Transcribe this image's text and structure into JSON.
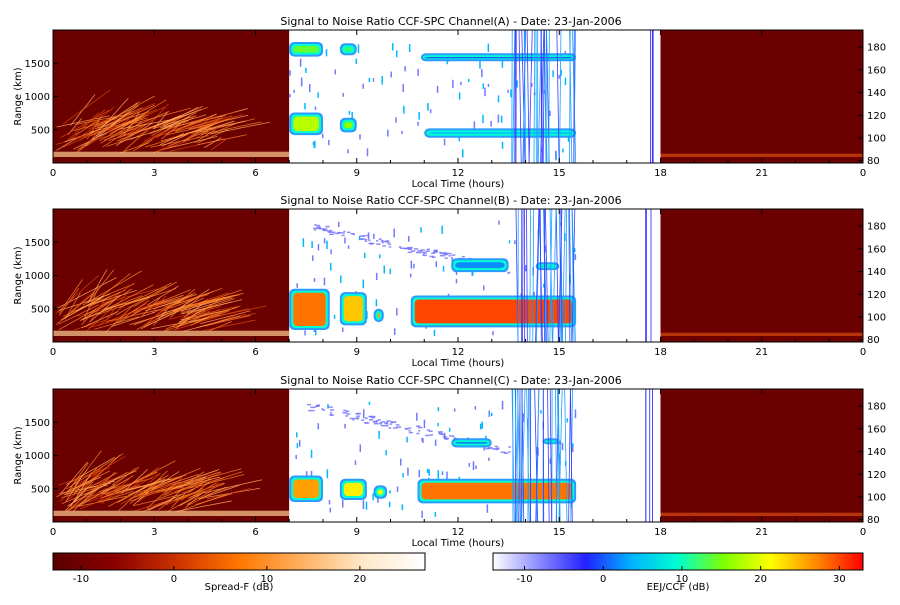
{
  "chart_data": {
    "type": "heatmap",
    "date": "23-Jan-2006",
    "xlabel": "Local Time (hours)",
    "xlim": [
      0,
      24
    ],
    "xticks": [
      "0",
      "3",
      "6",
      "9",
      "12",
      "15",
      "18",
      "21",
      "0"
    ],
    "ylabel_left": "Range (km)",
    "ylim_left": [
      0,
      2000
    ],
    "yticks_left": [
      "500",
      "1000",
      "1500"
    ],
    "ylim_right": [
      78,
      195
    ],
    "yticks_right": [
      "80",
      "100",
      "120",
      "140",
      "160",
      "180"
    ],
    "panels": [
      {
        "title": "Signal to Noise Ratio CCF-SPC Channel(A) - Date: 23-Jan-2006",
        "spreadF": {
          "start": 0,
          "end": 7,
          "bg": "#6b0000"
        },
        "ccf": {
          "start": 7,
          "end": 17.8
        },
        "spreadF2": {
          "start": 18,
          "end": 24,
          "bg": "#6b0000"
        },
        "features": [
          {
            "x0": 7.0,
            "x1": 8.0,
            "y0": 1600,
            "y1": 1820,
            "level": 14
          },
          {
            "x0": 8.5,
            "x1": 9.0,
            "y0": 1620,
            "y1": 1800,
            "level": 12
          },
          {
            "x0": 7.0,
            "x1": 8.0,
            "y0": 420,
            "y1": 760,
            "level": 18
          },
          {
            "x0": 8.5,
            "x1": 9.0,
            "y0": 460,
            "y1": 680,
            "level": 16
          },
          {
            "x0": 11.0,
            "x1": 15.5,
            "y0": 380,
            "y1": 520,
            "level": 4
          },
          {
            "x0": 10.9,
            "x1": 15.5,
            "y0": 1530,
            "y1": 1650,
            "level": -2
          }
        ]
      },
      {
        "title": "Signal to Noise Ratio CCF-SPC Channel(B) - Date: 23-Jan-2006",
        "spreadF": {
          "start": 0,
          "end": 7,
          "bg": "#6b0000"
        },
        "ccf": {
          "start": 7,
          "end": 17.8
        },
        "spreadF2": {
          "start": 18,
          "end": 24,
          "bg": "#6b0000"
        },
        "features": [
          {
            "x0": 7.0,
            "x1": 8.2,
            "y0": 180,
            "y1": 800,
            "level": 28
          },
          {
            "x0": 8.5,
            "x1": 9.3,
            "y0": 250,
            "y1": 750,
            "level": 24
          },
          {
            "x0": 9.5,
            "x1": 9.8,
            "y0": 300,
            "y1": 500,
            "level": 26
          },
          {
            "x0": 10.6,
            "x1": 15.5,
            "y0": 220,
            "y1": 700,
            "level": 30
          },
          {
            "x0": 11.8,
            "x1": 13.5,
            "y0": 1050,
            "y1": 1260,
            "level": 2
          },
          {
            "x0": 14.3,
            "x1": 15.0,
            "y0": 1080,
            "y1": 1200,
            "level": 6
          }
        ]
      },
      {
        "title": "Signal to Noise Ratio CCF-SPC Channel(C) - Date: 23-Jan-2006",
        "spreadF": {
          "start": 0,
          "end": 7,
          "bg": "#6b0000"
        },
        "ccf": {
          "start": 7,
          "end": 17.8
        },
        "spreadF2": {
          "start": 18,
          "end": 24,
          "bg": "#6b0000"
        },
        "features": [
          {
            "x0": 7.0,
            "x1": 8.0,
            "y0": 300,
            "y1": 700,
            "level": 26
          },
          {
            "x0": 8.5,
            "x1": 9.3,
            "y0": 330,
            "y1": 650,
            "level": 22
          },
          {
            "x0": 9.5,
            "x1": 9.9,
            "y0": 350,
            "y1": 550,
            "level": 20
          },
          {
            "x0": 10.8,
            "x1": 15.5,
            "y0": 280,
            "y1": 650,
            "level": 28
          },
          {
            "x0": 11.8,
            "x1": 13.0,
            "y0": 1120,
            "y1": 1260,
            "level": 0
          },
          {
            "x0": 14.5,
            "x1": 15.0,
            "y0": 1170,
            "y1": 1260,
            "level": 8
          }
        ]
      }
    ],
    "colorbars": [
      {
        "name": "spread-f",
        "label": "Spread-F (dB)",
        "range": [
          -13,
          27
        ],
        "ticks": [
          "-10",
          "0",
          "10",
          "20"
        ],
        "colors": [
          "#5a0000",
          "#8b0000",
          "#cc3300",
          "#ff7700",
          "#ffb060",
          "#ffe8c8",
          "#ffffff"
        ]
      },
      {
        "name": "eej-ccf",
        "label": "EEJ/CCF (dB)",
        "range": [
          -14,
          33
        ],
        "ticks": [
          "-10",
          "0",
          "10",
          "20",
          "30"
        ],
        "colors": [
          "#ffffff",
          "#8a8aff",
          "#2222ff",
          "#00b4ff",
          "#00ffd0",
          "#7fff00",
          "#ffff00",
          "#ff8800",
          "#ff0000"
        ]
      }
    ]
  }
}
